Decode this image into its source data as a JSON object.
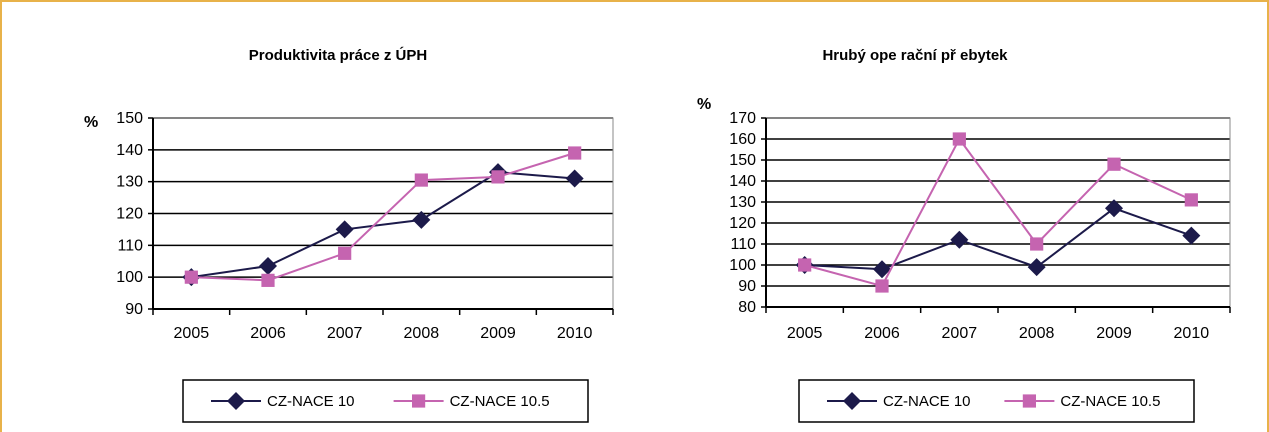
{
  "colors": {
    "frame": "#e8b24a",
    "series_dark": "#1c1a4a",
    "series_pink": "#c564b0",
    "grid": "#000000"
  },
  "chart_data": [
    {
      "type": "line",
      "title": "Produktivita práce z ÚPH",
      "ylabel": "%",
      "xlabel": "",
      "categories": [
        "2005",
        "2006",
        "2007",
        "2008",
        "2009",
        "2010"
      ],
      "ylim": [
        90,
        150
      ],
      "yticks": [
        90,
        100,
        110,
        120,
        130,
        140,
        150
      ],
      "grid": true,
      "legend": "bottom",
      "series": [
        {
          "name": "CZ-NACE 10",
          "marker": "diamond",
          "color": "#1c1a4a",
          "values": [
            100,
            103.5,
            115,
            118,
            133,
            131
          ]
        },
        {
          "name": "CZ-NACE 10.5",
          "marker": "square",
          "color": "#c564b0",
          "values": [
            100,
            99,
            107.5,
            130.5,
            131.5,
            139
          ]
        }
      ]
    },
    {
      "type": "line",
      "title": "Hrubý ope rační př ebytek",
      "ylabel": "%",
      "xlabel": "",
      "categories": [
        "2005",
        "2006",
        "2007",
        "2008",
        "2009",
        "2010"
      ],
      "ylim": [
        80,
        170
      ],
      "yticks": [
        80,
        90,
        100,
        110,
        120,
        130,
        140,
        150,
        160,
        170
      ],
      "grid": true,
      "legend": "bottom",
      "series": [
        {
          "name": "CZ-NACE 10",
          "marker": "diamond",
          "color": "#1c1a4a",
          "values": [
            100,
            98,
            112,
            99,
            127,
            114
          ]
        },
        {
          "name": "CZ-NACE 10.5",
          "marker": "square",
          "color": "#c564b0",
          "values": [
            100,
            90,
            160,
            110,
            148,
            131
          ]
        }
      ]
    }
  ]
}
